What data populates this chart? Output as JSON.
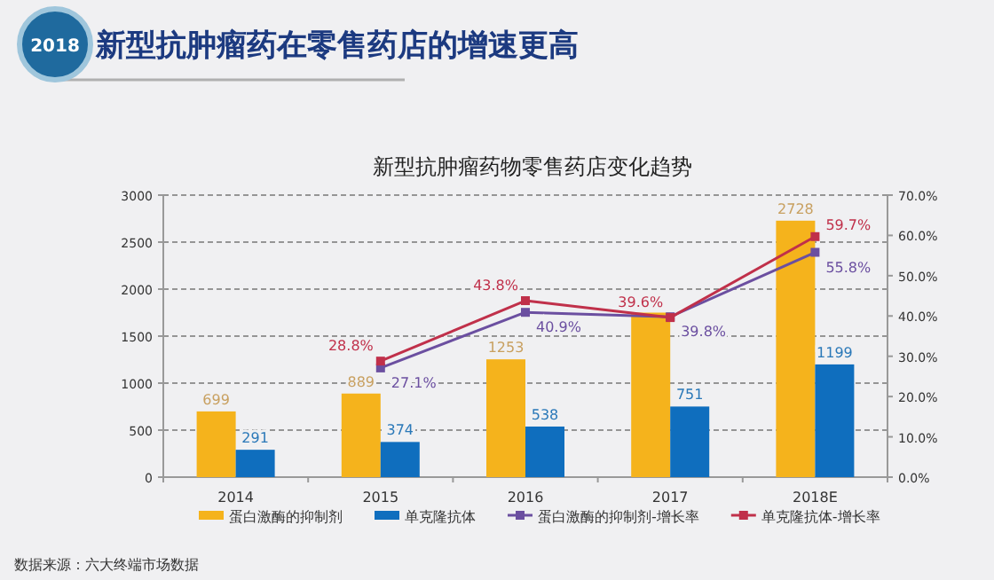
{
  "chart_data": {
    "type": "bar",
    "title": "新型抗肿瘤药在零售药店的增速更高",
    "subtitle": "新型抗肿瘤药物零售药店变化趋势",
    "annotations": [
      "2018",
      "数据来源：六大终端市场数据"
    ],
    "categories": [
      "2014",
      "2015",
      "2016",
      "2017",
      "2018E"
    ],
    "series": [
      {
        "name": "蛋白激酶的抑制剂",
        "color": "#f5b31c",
        "values": [
          699,
          889,
          1253,
          1750,
          2728
        ],
        "value_labels": [
          "699",
          "889",
          "1253",
          null,
          "2728"
        ]
      },
      {
        "name": "单克隆抗体",
        "color": "#0f6ebe",
        "values": [
          291,
          374,
          538,
          751,
          1199
        ],
        "value_labels": [
          "291",
          "374",
          "538",
          "751",
          "1199"
        ]
      },
      {
        "name": "蛋白激酶的抑制剂-增长率",
        "type": "line",
        "axis": "y2",
        "color": "#6b4fa0",
        "values": [
          null,
          27.1,
          40.9,
          39.8,
          55.8
        ],
        "value_labels": [
          null,
          "27.1%",
          "40.9%",
          "39.8%",
          "55.8%"
        ]
      },
      {
        "name": "单克隆抗体-增长率",
        "type": "line",
        "axis": "y2",
        "color": "#c0304a",
        "values": [
          null,
          28.8,
          43.8,
          39.6,
          59.7
        ],
        "value_labels": [
          null,
          "28.8%",
          "43.8%",
          "39.6%",
          "59.7%"
        ]
      }
    ],
    "ylim": [
      0,
      3000
    ],
    "yticks": [
      0,
      500,
      1000,
      1500,
      2000,
      2500,
      3000
    ],
    "y2lim": [
      0,
      70
    ],
    "y2ticks": [
      {
        "value": 0,
        "label": "0.0%"
      },
      {
        "value": 10,
        "label": "10.0%"
      },
      {
        "value": 20,
        "label": "20.0%"
      },
      {
        "value": 30,
        "label": "30.0%"
      },
      {
        "value": 40,
        "label": "40.0%"
      },
      {
        "value": 50,
        "label": "50.0%"
      },
      {
        "value": 60,
        "label": "60.0%"
      },
      {
        "value": 70,
        "label": "70.0%"
      }
    ],
    "grid": "y",
    "legend": "bottom",
    "marker": "square",
    "line_style": "solid"
  }
}
